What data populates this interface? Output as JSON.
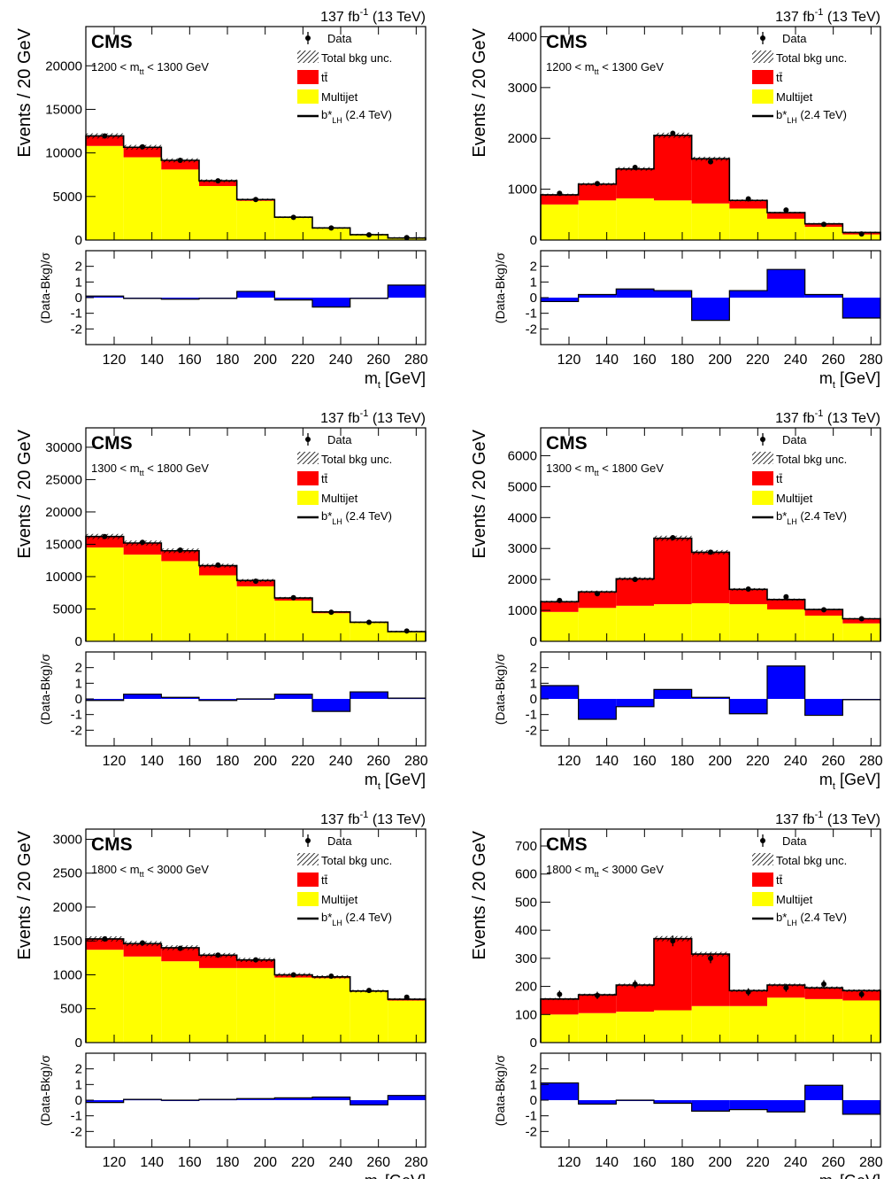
{
  "figure": {
    "lumi_label": "137 fb",
    "lumi_exp": "-1",
    "energy_label": " (13 TeV)",
    "cms_label": "CMS",
    "xlabel_main": "m",
    "xlabel_sub": "t",
    "xlabel_unit": " [GeV]",
    "ylabel_top": "Events / 20 GeV",
    "ylabel_ratio": "(Data-Bkg)/σ",
    "legend": {
      "data": "Data",
      "unc": "Total bkg unc.",
      "ttbar": "tt̄",
      "multijet": "Multijet",
      "signal_main": "b*",
      "signal_sub": "LH",
      "signal_mass": " (2.4 TeV)"
    },
    "colors": {
      "ttbar": "#ff0000",
      "multijet": "#ffff00",
      "pull": "#0000ff",
      "data": "#000000"
    }
  },
  "chart_data": [
    {
      "type": "bar",
      "subtype": "stacked-histogram-with-ratio",
      "region_label": "1200 < m",
      "region_sub": "tt",
      "region_label_end": " < 1300 GeV",
      "bin_edges": [
        105,
        125,
        145,
        165,
        185,
        205,
        225,
        245,
        265,
        285
      ],
      "x_ticks": [
        120,
        140,
        160,
        180,
        200,
        220,
        240,
        260,
        280
      ],
      "ylim": [
        0,
        24500
      ],
      "y_ticks": [
        0,
        5000,
        10000,
        15000,
        20000
      ],
      "pull_ylim": [
        -3,
        3
      ],
      "pull_ticks": [
        -2,
        -1,
        0,
        1,
        2
      ],
      "series": [
        {
          "name": "Multijet",
          "values": [
            10800,
            9500,
            8100,
            6200,
            4500,
            2550,
            1350,
            600,
            230
          ]
        },
        {
          "name": "tt̄",
          "values": [
            1150,
            1150,
            1050,
            600,
            150,
            70,
            40,
            20,
            10
          ]
        }
      ],
      "data": [
        11950,
        10700,
        9150,
        6800,
        4650,
        2600,
        1380,
        600,
        280
      ],
      "pull": [
        0.1,
        -0.05,
        -0.1,
        -0.05,
        0.4,
        -0.15,
        -0.6,
        -0.05,
        0.8
      ]
    },
    {
      "type": "bar",
      "subtype": "stacked-histogram-with-ratio",
      "region_label": "1200 < m",
      "region_sub": "tt",
      "region_label_end": " < 1300 GeV",
      "bin_edges": [
        105,
        125,
        145,
        165,
        185,
        205,
        225,
        245,
        265,
        285
      ],
      "x_ticks": [
        120,
        140,
        160,
        180,
        200,
        220,
        240,
        260,
        280
      ],
      "ylim": [
        0,
        4200
      ],
      "y_ticks": [
        0,
        1000,
        2000,
        3000,
        4000
      ],
      "pull_ylim": [
        -3,
        3
      ],
      "pull_ticks": [
        -2,
        -1,
        0,
        1,
        2
      ],
      "series": [
        {
          "name": "Multijet",
          "values": [
            700,
            780,
            820,
            780,
            720,
            620,
            420,
            260,
            110
          ]
        },
        {
          "name": "tt̄",
          "values": [
            190,
            320,
            580,
            1280,
            880,
            160,
            120,
            60,
            40
          ]
        }
      ],
      "data": [
        920,
        1110,
        1430,
        2100,
        1540,
        810,
        590,
        310,
        120
      ],
      "pull": [
        -0.25,
        0.2,
        0.55,
        0.45,
        -1.45,
        0.45,
        1.8,
        0.2,
        -1.3
      ]
    },
    {
      "type": "bar",
      "subtype": "stacked-histogram-with-ratio",
      "region_label": "1300 < m",
      "region_sub": "tt",
      "region_label_end": " < 1800 GeV",
      "bin_edges": [
        105,
        125,
        145,
        165,
        185,
        205,
        225,
        245,
        265,
        285
      ],
      "x_ticks": [
        120,
        140,
        160,
        180,
        200,
        220,
        240,
        260,
        280
      ],
      "ylim": [
        0,
        33000
      ],
      "y_ticks": [
        0,
        5000,
        10000,
        15000,
        20000,
        25000,
        30000
      ],
      "pull_ylim": [
        -3,
        3
      ],
      "pull_ticks": [
        -2,
        -1,
        0,
        1,
        2
      ],
      "series": [
        {
          "name": "Multijet",
          "values": [
            14500,
            13400,
            12400,
            10200,
            8500,
            6300,
            4350,
            2850,
            1450
          ]
        },
        {
          "name": "tt̄",
          "values": [
            1700,
            1800,
            1600,
            1500,
            900,
            400,
            200,
            100,
            50
          ]
        }
      ],
      "data": [
        16200,
        15300,
        14100,
        11800,
        9300,
        6750,
        4500,
        2950,
        1600
      ],
      "pull": [
        -0.1,
        0.3,
        0.1,
        -0.1,
        0.0,
        0.3,
        -0.8,
        0.45,
        0.05
      ]
    },
    {
      "type": "bar",
      "subtype": "stacked-histogram-with-ratio",
      "region_label": "1300 < m",
      "region_sub": "tt",
      "region_label_end": " < 1800 GeV",
      "bin_edges": [
        105,
        125,
        145,
        165,
        185,
        205,
        225,
        245,
        265,
        285
      ],
      "x_ticks": [
        120,
        140,
        160,
        180,
        200,
        220,
        240,
        260,
        280
      ],
      "ylim": [
        0,
        6900
      ],
      "y_ticks": [
        0,
        1000,
        2000,
        3000,
        4000,
        5000,
        6000
      ],
      "pull_ylim": [
        -3,
        3
      ],
      "pull_ticks": [
        -2,
        -1,
        0,
        1,
        2
      ],
      "series": [
        {
          "name": "Multijet",
          "values": [
            950,
            1080,
            1150,
            1200,
            1230,
            1200,
            1030,
            830,
            580
          ]
        },
        {
          "name": "tt̄",
          "values": [
            330,
            520,
            870,
            2130,
            1650,
            480,
            320,
            200,
            150
          ]
        }
      ],
      "data": [
        1320,
        1540,
        2000,
        3350,
        2880,
        1690,
        1440,
        1020,
        730
      ],
      "pull": [
        0.85,
        -1.3,
        -0.5,
        0.6,
        0.1,
        -0.95,
        2.1,
        -1.05,
        -0.05
      ]
    },
    {
      "type": "bar",
      "subtype": "stacked-histogram-with-ratio",
      "region_label": "1800 < m",
      "region_sub": "tt",
      "region_label_end": " < 3000 GeV",
      "bin_edges": [
        105,
        125,
        145,
        165,
        185,
        205,
        225,
        245,
        265,
        285
      ],
      "x_ticks": [
        120,
        140,
        160,
        180,
        200,
        220,
        240,
        260,
        280
      ],
      "ylim": [
        0,
        3150
      ],
      "y_ticks": [
        0,
        500,
        1000,
        1500,
        2000,
        2500,
        3000
      ],
      "pull_ylim": [
        -3,
        3
      ],
      "pull_ticks": [
        -2,
        -1,
        0,
        1,
        2
      ],
      "series": [
        {
          "name": "Multijet",
          "values": [
            1370,
            1270,
            1200,
            1100,
            1100,
            960,
            950,
            750,
            620
          ]
        },
        {
          "name": "tt̄",
          "values": [
            160,
            190,
            200,
            190,
            120,
            40,
            20,
            10,
            20
          ]
        }
      ],
      "data": [
        1530,
        1470,
        1390,
        1290,
        1220,
        1000,
        980,
        770,
        670
      ],
      "pull": [
        -0.15,
        0.05,
        0.0,
        0.05,
        0.1,
        0.15,
        0.2,
        -0.3,
        0.3
      ]
    },
    {
      "type": "bar",
      "subtype": "stacked-histogram-with-ratio",
      "region_label": "1800 < m",
      "region_sub": "tt",
      "region_label_end": " < 3000 GeV",
      "bin_edges": [
        105,
        125,
        145,
        165,
        185,
        205,
        225,
        245,
        265,
        285
      ],
      "x_ticks": [
        120,
        140,
        160,
        180,
        200,
        220,
        240,
        260,
        280
      ],
      "ylim": [
        0,
        760
      ],
      "y_ticks": [
        0,
        100,
        200,
        300,
        400,
        500,
        600,
        700
      ],
      "pull_ylim": [
        -3,
        3
      ],
      "pull_ticks": [
        -2,
        -1,
        0,
        1,
        2
      ],
      "series": [
        {
          "name": "Multijet",
          "values": [
            100,
            105,
            110,
            115,
            130,
            130,
            160,
            155,
            150
          ]
        },
        {
          "name": "tt̄",
          "values": [
            55,
            65,
            95,
            255,
            185,
            55,
            45,
            40,
            35
          ]
        }
      ],
      "data": [
        172,
        168,
        208,
        362,
        300,
        180,
        195,
        208,
        172
      ],
      "pull": [
        1.1,
        -0.25,
        0.0,
        -0.2,
        -0.7,
        -0.6,
        -0.75,
        0.95,
        -0.9
      ]
    }
  ]
}
